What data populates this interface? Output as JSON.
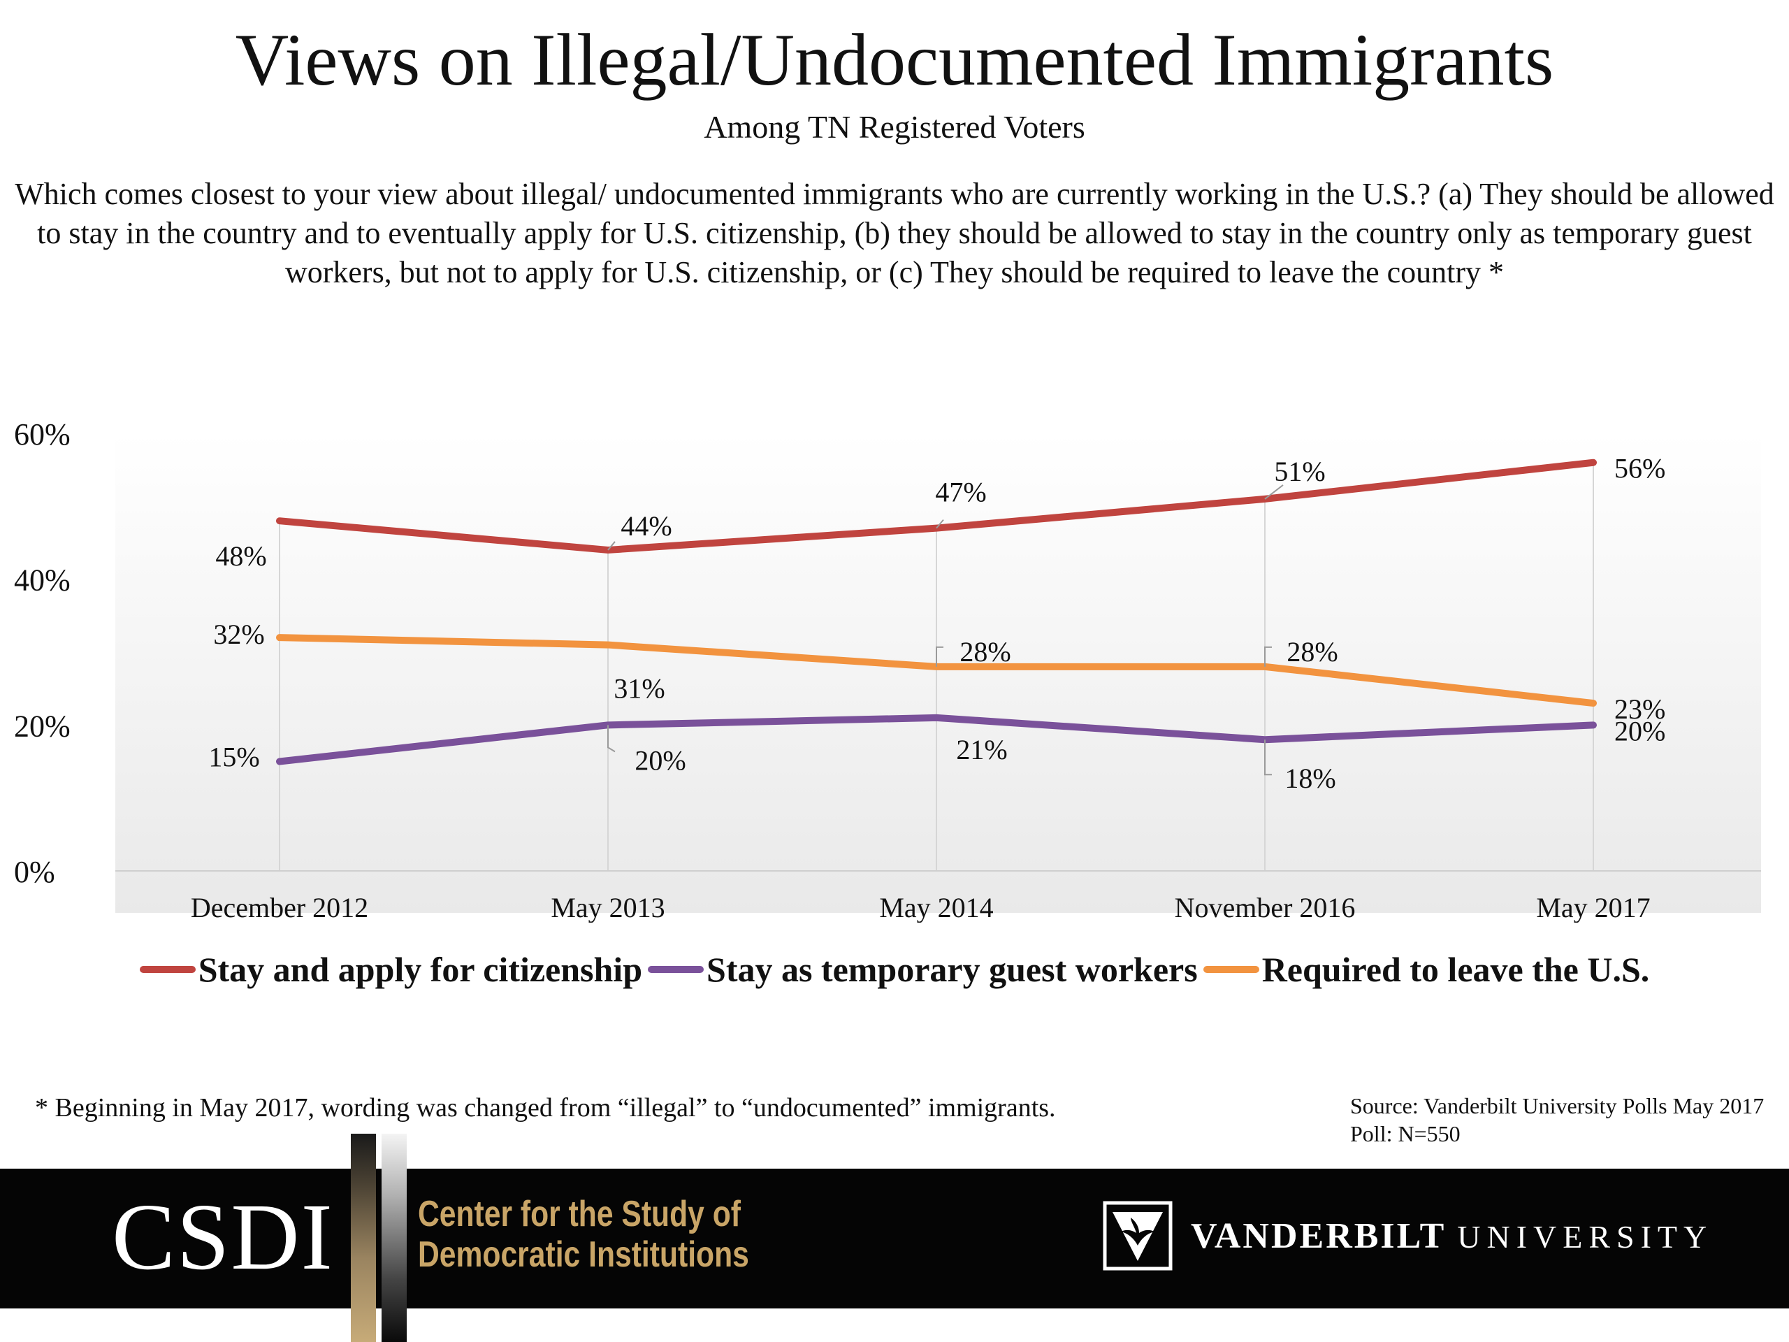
{
  "header": {
    "title": "Views on Illegal/Undocumented Immigrants",
    "subtitle": "Among TN Registered Voters",
    "question": "Which comes closest to your view about illegal/ undocumented immigrants who are currently working in the U.S.? (a) They should be allowed to stay in the country and to eventually apply for U.S. citizenship, (b) they should be allowed to stay in the country only as temporary guest workers, but not to apply for U.S. citizenship, or (c) They should be required to leave the country *"
  },
  "chart_data": {
    "type": "line",
    "title": "Views on Illegal/Undocumented Immigrants",
    "subtitle": "Among TN Registered Voters",
    "categories": [
      "December 2012",
      "May 2013",
      "May 2014",
      "November 2016",
      "May 2017"
    ],
    "y_ticks": [
      "0%",
      "20%",
      "40%",
      "60%"
    ],
    "ylim": [
      0,
      60
    ],
    "unit": "%",
    "grid": false,
    "legend_position": "bottom",
    "series": [
      {
        "name": "Stay and apply for citizenship",
        "color": "#c0443f",
        "values": [
          48,
          44,
          47,
          51,
          56
        ],
        "labels": [
          "48%",
          "44%",
          "47%",
          "51%",
          "56%"
        ]
      },
      {
        "name": "Stay as temporary guest workers",
        "color": "#7a519a",
        "values": [
          15,
          20,
          21,
          18,
          20
        ],
        "labels": [
          "15%",
          "20%",
          "21%",
          "18%",
          "20%"
        ]
      },
      {
        "name": "Required to leave the U.S.",
        "color": "#f2933f",
        "values": [
          32,
          31,
          28,
          28,
          23
        ],
        "labels": [
          "32%",
          "31%",
          "28%",
          "28%",
          "23%"
        ]
      }
    ]
  },
  "footnote": "* Beginning in May 2017, wording was changed from “illegal” to “undocumented” immigrants.",
  "source": "Source: Vanderbilt University Polls May 2017 Poll: N=550",
  "footer": {
    "logo_text": "CSDI",
    "center_line1": "Center for the Study of",
    "center_line2": "Democratic Institutions",
    "university_bold": "VANDERBILT",
    "university_light": "UNIVERSITY",
    "colors": {
      "background": "#050505",
      "gold": "#c9a567"
    }
  }
}
